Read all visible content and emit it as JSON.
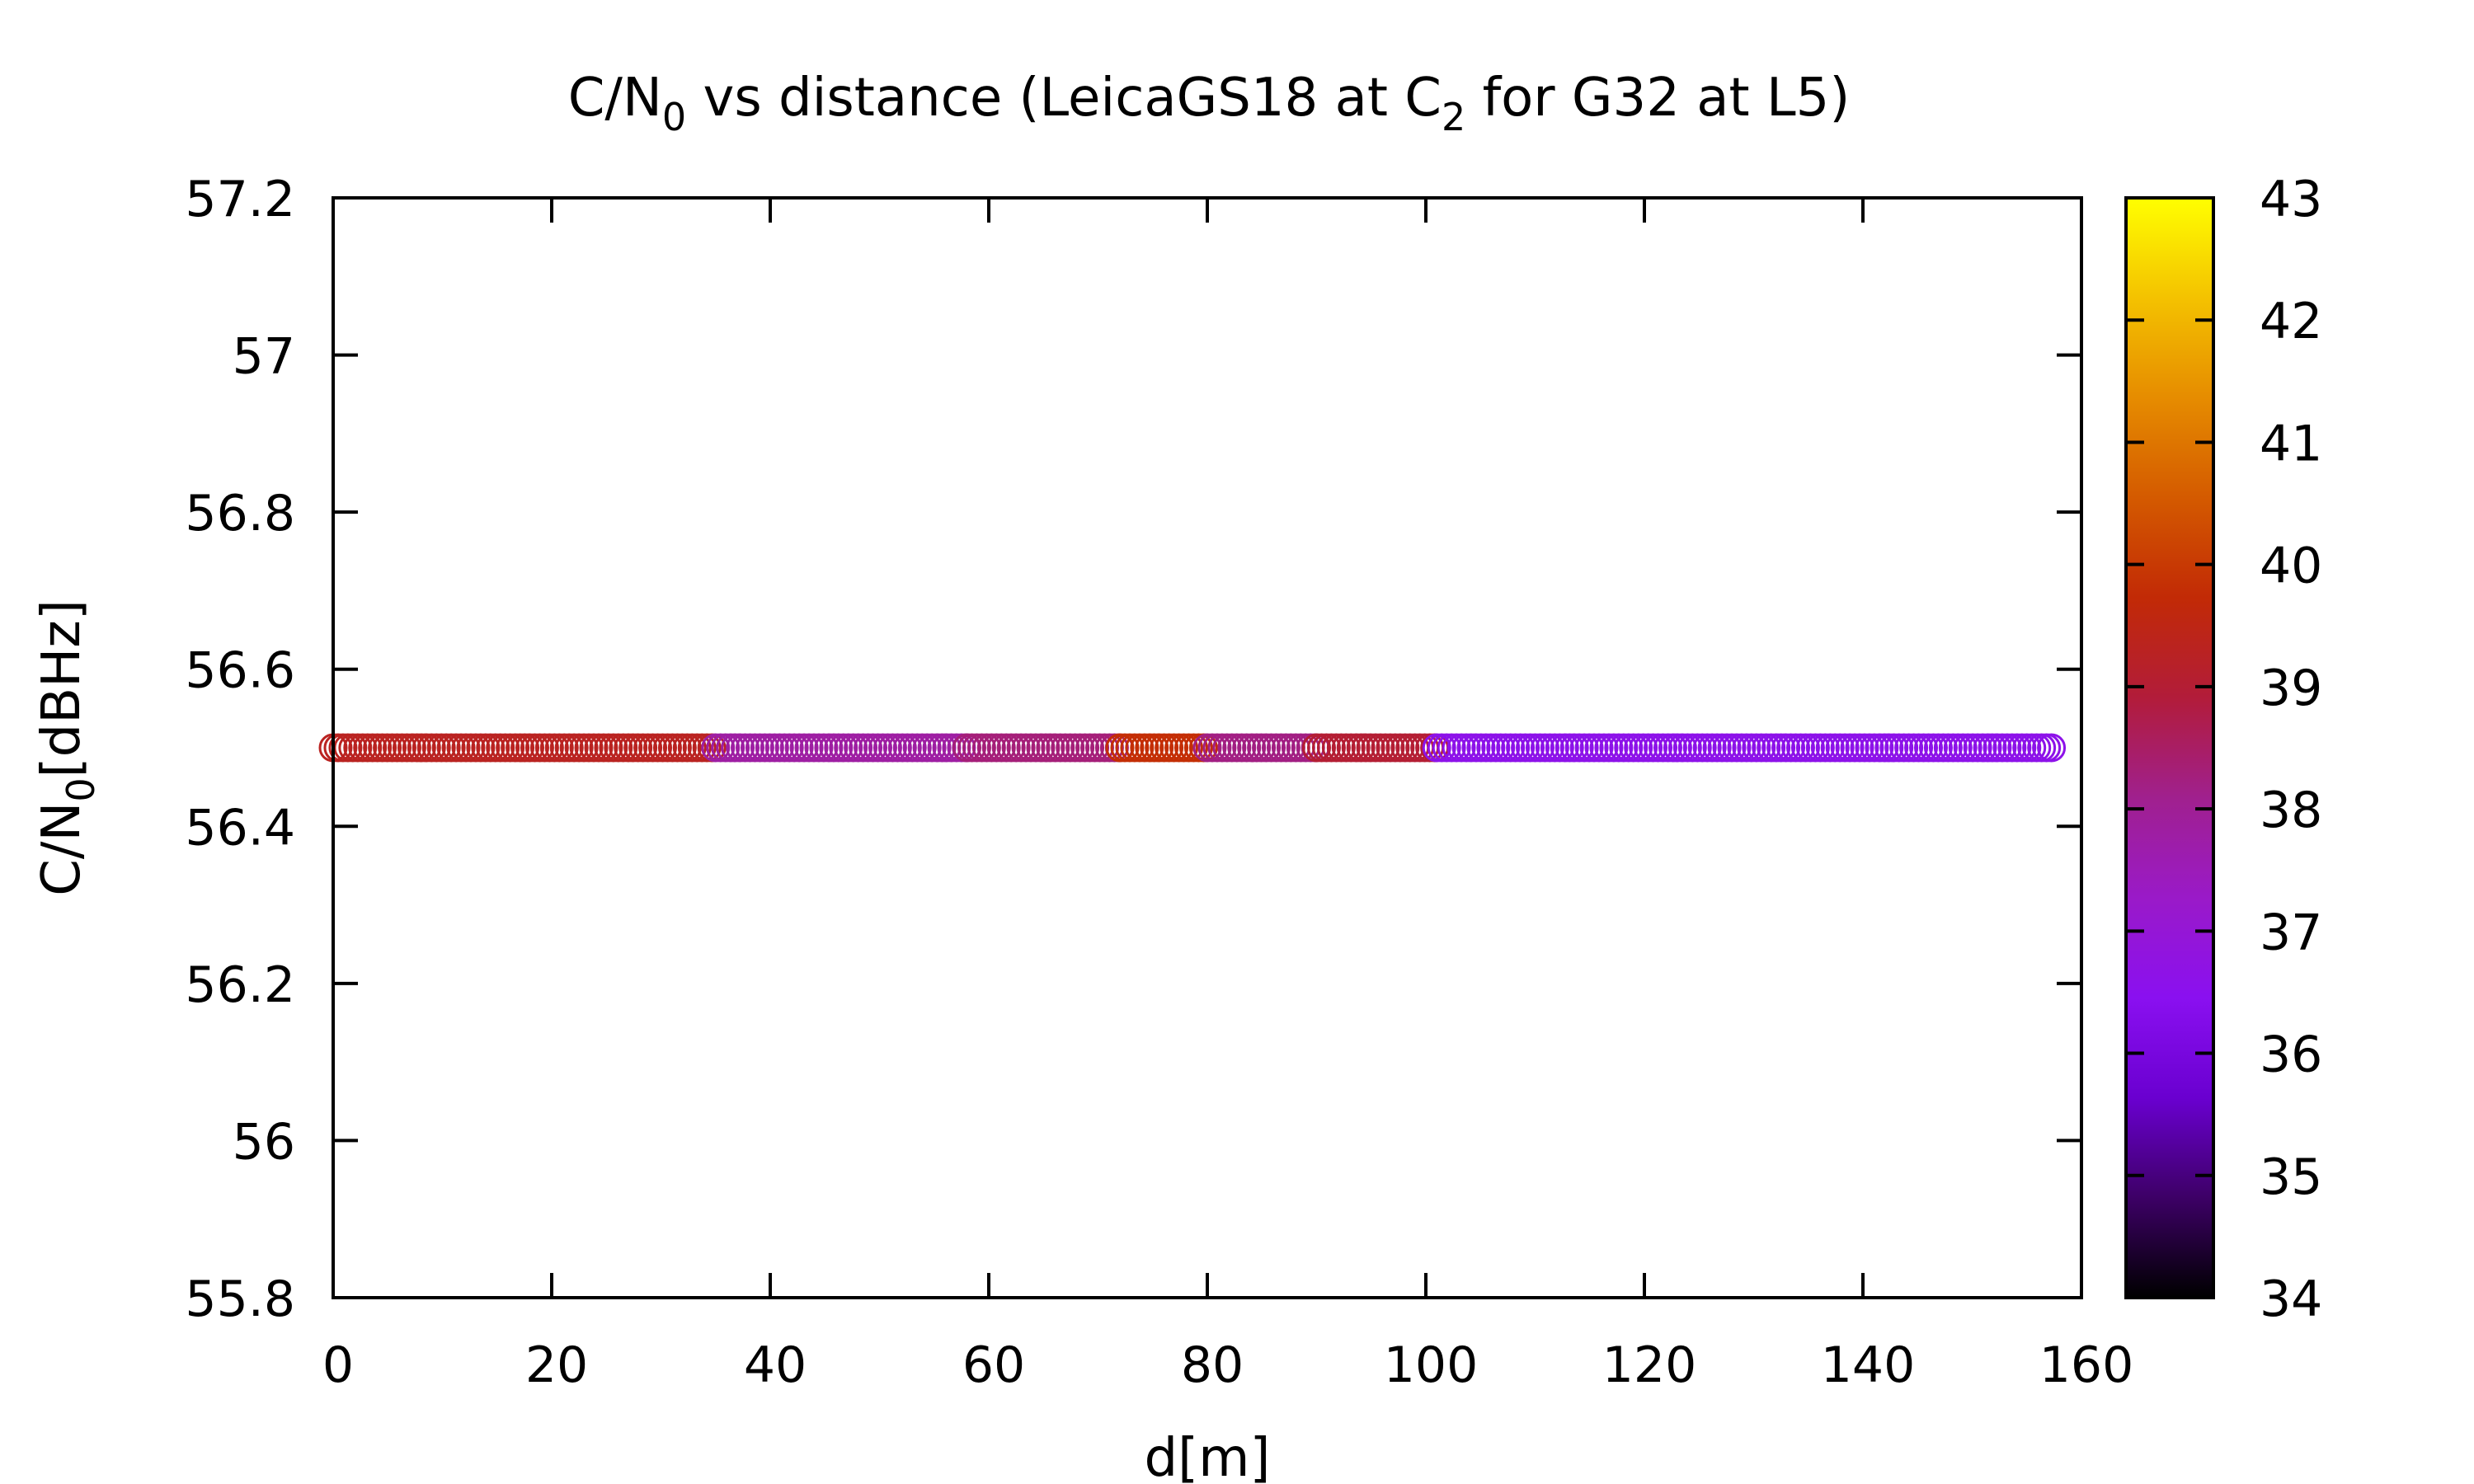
{
  "chart_data": {
    "type": "scatter",
    "title": {
      "prefix": "C/N",
      "prefix_sub": "0",
      "middle": " vs distance (LeicaGS18 at C",
      "middle_sub": "2",
      "suffix": " for G32 at L5)"
    },
    "xlabel": "d[m]",
    "ylabel": {
      "main": "C/N",
      "sub": "0",
      "rest": "[dBHz]"
    },
    "xlim": [
      0,
      160
    ],
    "ylim": [
      55.8,
      57.2
    ],
    "xticks": [
      0,
      20,
      40,
      60,
      80,
      100,
      120,
      140,
      160
    ],
    "xtick_labels": [
      "0",
      "20",
      "40",
      "60",
      "80",
      "100",
      "120",
      "140",
      "160"
    ],
    "yticks": [
      55.8,
      56,
      56.2,
      56.4,
      56.6,
      56.8,
      57,
      57.2
    ],
    "ytick_labels": [
      "55.8",
      "56",
      "56.2",
      "56.4",
      "56.6",
      "56.8",
      "57",
      "57.2"
    ],
    "colorbar": {
      "range": [
        34,
        43
      ],
      "ticks": [
        34,
        35,
        36,
        37,
        38,
        39,
        40,
        41,
        42,
        43
      ],
      "tick_labels": [
        "34",
        "35",
        "36",
        "37",
        "38",
        "39",
        "40",
        "41",
        "42",
        "43"
      ],
      "palette": [
        "#000000",
        "#3d0066",
        "#6a00d0",
        "#8a10f0",
        "#9a1ac8",
        "#a0208e",
        "#b21c3a",
        "#c22a06",
        "#d45a00",
        "#e68c00",
        "#f4c200",
        "#ffff00"
      ]
    },
    "series": [
      {
        "y": 56.5,
        "segments": [
          {
            "x": [
              0,
              35
            ],
            "value": 39.3
          },
          {
            "x": [
              35,
              58
            ],
            "value": 37.8
          },
          {
            "x": [
              58,
              72
            ],
            "value": 38.3
          },
          {
            "x": [
              72,
              80
            ],
            "value": 39.8
          },
          {
            "x": [
              80,
              90
            ],
            "value": 38.2
          },
          {
            "x": [
              90,
              101
            ],
            "value": 39.0
          },
          {
            "x": [
              101,
              157.5
            ],
            "value": 36.6
          }
        ]
      }
    ],
    "grid": false
  }
}
